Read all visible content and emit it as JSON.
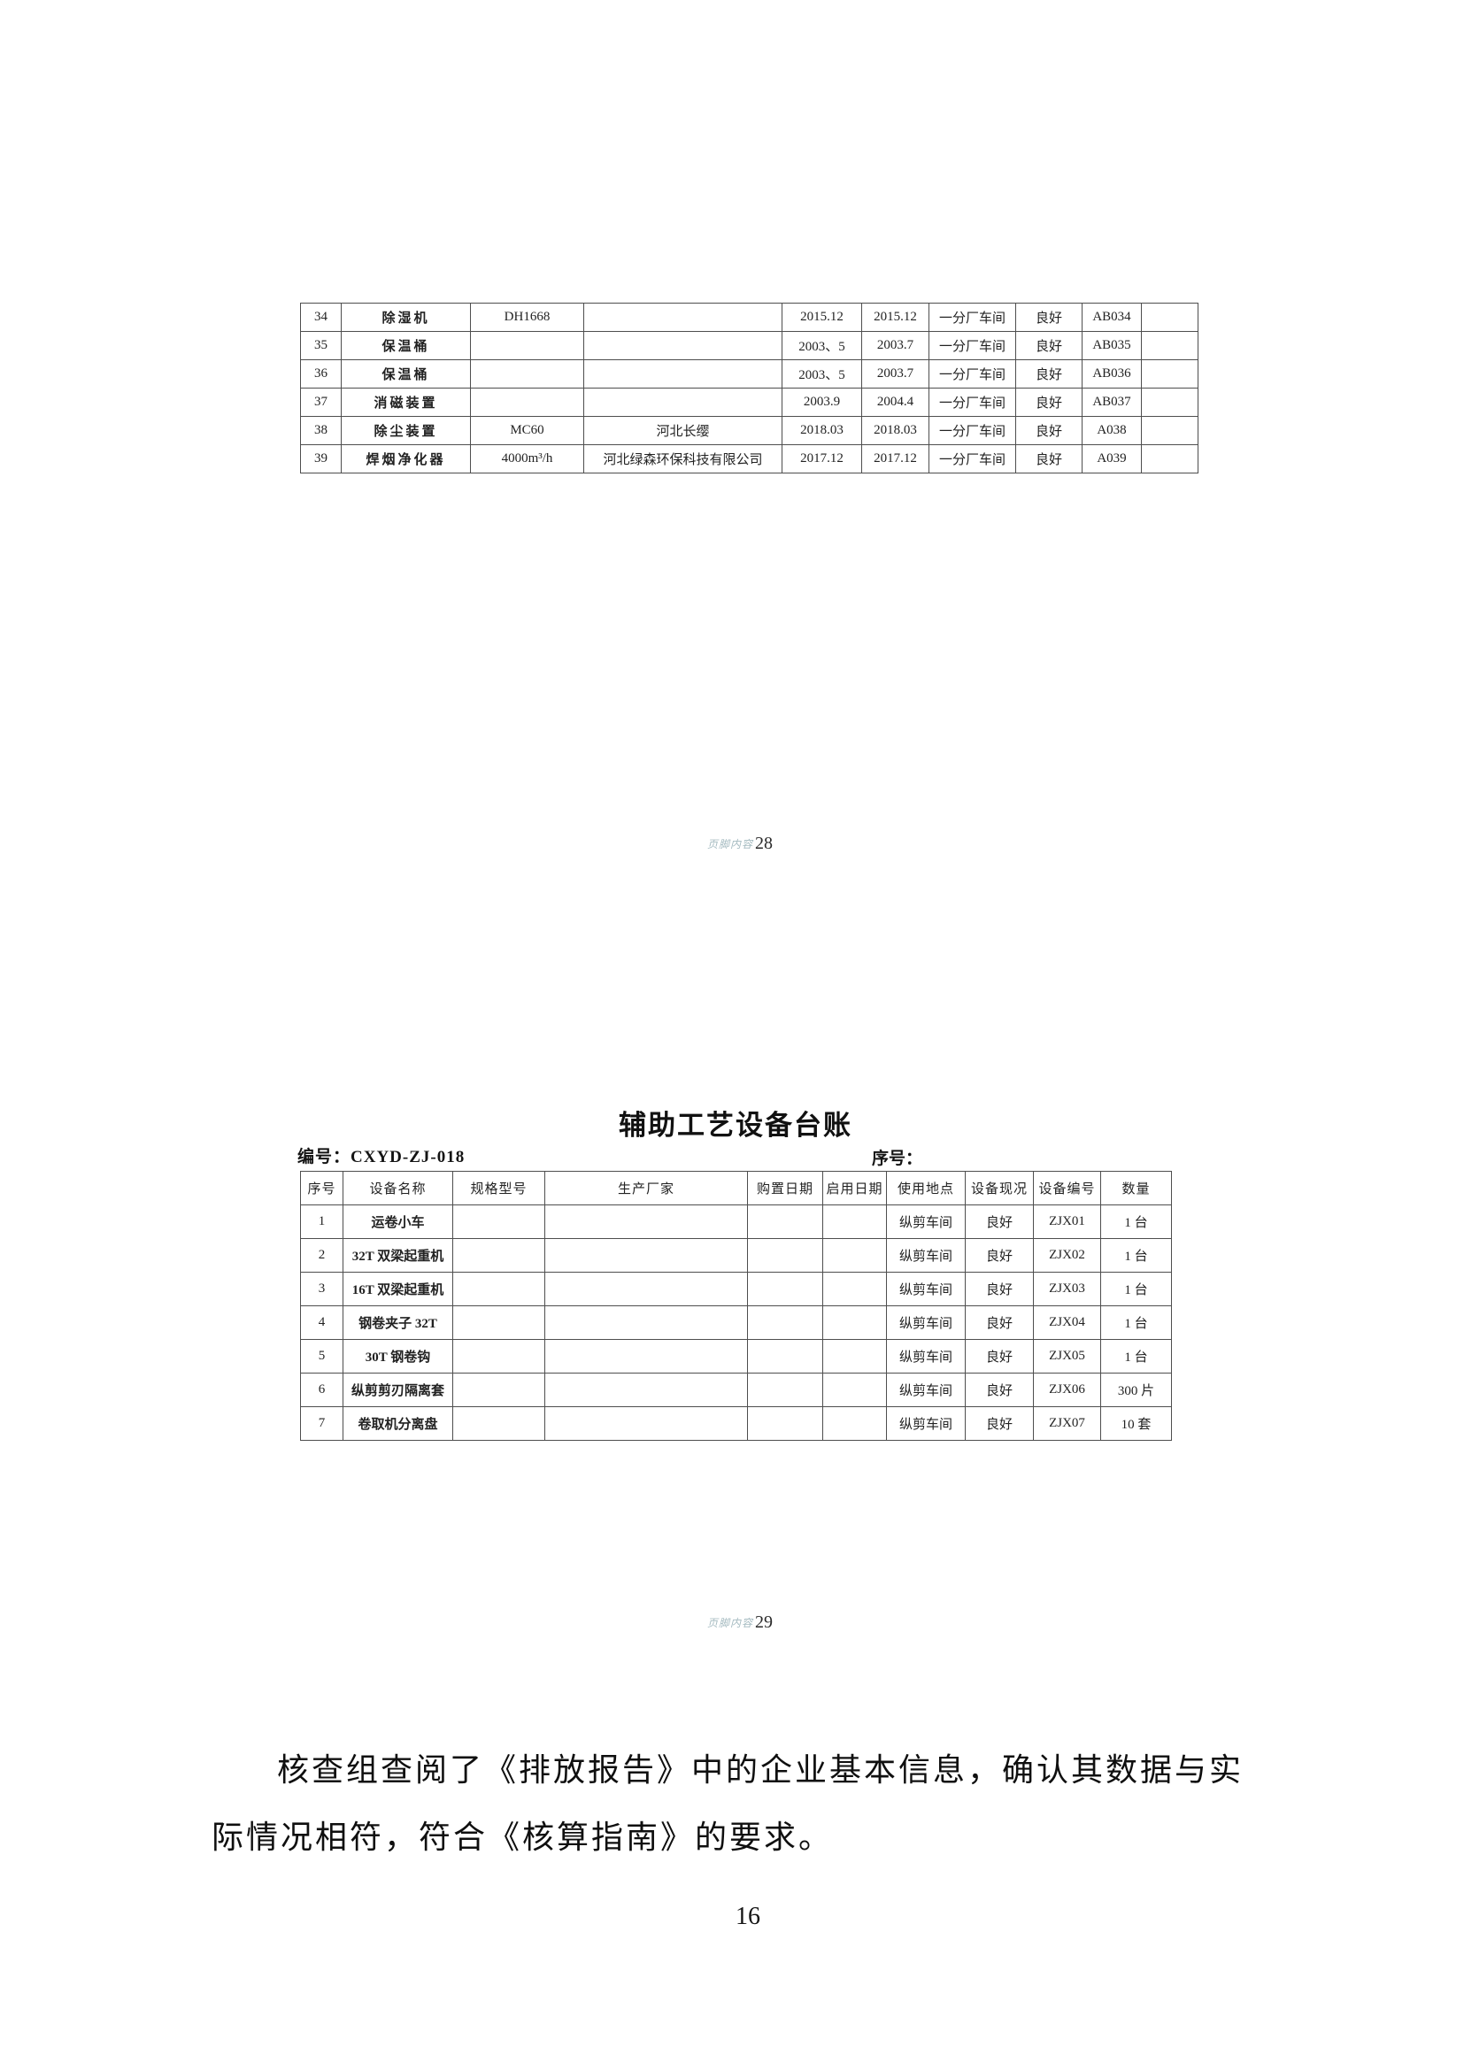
{
  "tables": {
    "continued": {
      "rows": [
        [
          "34",
          "除湿机",
          "DH1668",
          "",
          "2015.12",
          "2015.12",
          "一分厂车间",
          "良好",
          "AB034",
          ""
        ],
        [
          "35",
          "保温桶",
          "",
          "",
          "2003、5",
          "2003.7",
          "一分厂车间",
          "良好",
          "AB035",
          ""
        ],
        [
          "36",
          "保温桶",
          "",
          "",
          "2003、5",
          "2003.7",
          "一分厂车间",
          "良好",
          "AB036",
          ""
        ],
        [
          "37",
          "消磁装置",
          "",
          "",
          "2003.9",
          "2004.4",
          "一分厂车间",
          "良好",
          "AB037",
          ""
        ],
        [
          "38",
          "除尘装置",
          "MC60",
          "河北长缨",
          "2018.03",
          "2018.03",
          "一分厂车间",
          "良好",
          "A038",
          ""
        ],
        [
          "39",
          "焊烟净化器",
          "4000m³/h",
          "河北绿森环保科技有限公司",
          "2017.12",
          "2017.12",
          "一分厂车间",
          "良好",
          "A039",
          ""
        ]
      ]
    },
    "auxiliary": {
      "title": "辅助工艺设备台账",
      "doc_no": "编号：CXYD-ZJ-018",
      "serial_label": "序号：",
      "headers": [
        "序号",
        "设备名称",
        "规格型号",
        "生产厂家",
        "购置日期",
        "启用日期",
        "使用地点",
        "设备现况",
        "设备编号",
        "数量"
      ],
      "rows": [
        [
          "1",
          "运卷小车",
          "",
          "",
          "",
          "",
          "纵剪车间",
          "良好",
          "ZJX01",
          "1 台"
        ],
        [
          "2",
          "32T 双梁起重机",
          "",
          "",
          "",
          "",
          "纵剪车间",
          "良好",
          "ZJX02",
          "1 台"
        ],
        [
          "3",
          "16T 双梁起重机",
          "",
          "",
          "",
          "",
          "纵剪车间",
          "良好",
          "ZJX03",
          "1 台"
        ],
        [
          "4",
          "钢卷夹子 32T",
          "",
          "",
          "",
          "",
          "纵剪车间",
          "良好",
          "ZJX04",
          "1 台"
        ],
        [
          "5",
          "30T 钢卷钩",
          "",
          "",
          "",
          "",
          "纵剪车间",
          "良好",
          "ZJX05",
          "1 台"
        ],
        [
          "6",
          "纵剪剪刃隔离套",
          "",
          "",
          "",
          "",
          "纵剪车间",
          "良好",
          "ZJX06",
          "300 片"
        ],
        [
          "7",
          "卷取机分离盘",
          "",
          "",
          "",
          "",
          "纵剪车间",
          "良好",
          "ZJX07",
          "10 套"
        ]
      ]
    }
  },
  "footers": [
    {
      "prefix": "页脚内容",
      "number": "28"
    },
    {
      "prefix": "页脚内容",
      "number": "29"
    }
  ],
  "paragraph": {
    "lines": [
      "核查组查阅了《排放报告》中的企业基本信息，确认其数据与实",
      "际情况相符，符合《核算指南》的要求。"
    ]
  },
  "page_number": "16"
}
